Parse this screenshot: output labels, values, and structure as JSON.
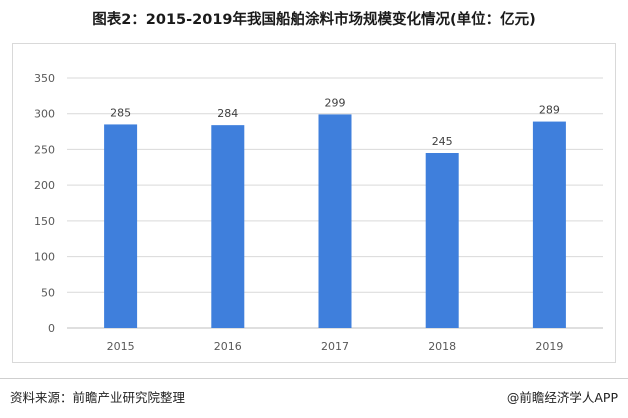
{
  "title": "图表2：2015-2019年我国船舶涂料市场规模变化情况(单位：亿元)",
  "source": "资料来源：前瞻产业研究院整理",
  "credit": "@前瞻经济学人APP",
  "colors": {
    "bar": "#3f7fdc",
    "grid": "#d9d9d9",
    "axis": "#bfbfbf",
    "text": "#595959"
  },
  "chart_data": {
    "type": "bar",
    "categories": [
      "2015",
      "2016",
      "2017",
      "2018",
      "2019"
    ],
    "values": [
      285,
      284,
      299,
      245,
      289
    ],
    "ylim": [
      0,
      350
    ],
    "yticks": [
      0,
      50,
      100,
      150,
      200,
      250,
      300,
      350
    ],
    "grid": true,
    "data_labels": true
  }
}
